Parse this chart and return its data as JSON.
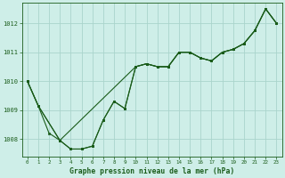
{
  "title": "Graphe pression niveau de la mer (hPa)",
  "background_color": "#ceeee8",
  "grid_color": "#aad4cc",
  "line_color": "#1a5c1a",
  "xlim": [
    -0.5,
    23.5
  ],
  "ylim": [
    1007.4,
    1012.7
  ],
  "yticks": [
    1008,
    1009,
    1010,
    1011,
    1012
  ],
  "xticks": [
    0,
    1,
    2,
    3,
    4,
    5,
    6,
    7,
    8,
    9,
    10,
    11,
    12,
    13,
    14,
    15,
    16,
    17,
    18,
    19,
    20,
    21,
    22,
    23
  ],
  "series1_x": [
    0,
    1,
    2,
    3,
    4,
    5,
    6,
    7,
    8,
    9,
    10,
    11,
    12,
    13,
    14,
    15,
    16,
    17,
    18,
    19,
    20,
    21,
    22,
    23
  ],
  "series1_y": [
    1010.0,
    1009.15,
    1008.2,
    1007.95,
    1007.65,
    1007.65,
    1007.75,
    1008.65,
    1009.3,
    1009.05,
    1010.5,
    1010.6,
    1010.5,
    1010.5,
    1011.0,
    1011.0,
    1010.8,
    1010.7,
    1011.0,
    1011.1,
    1011.3,
    1011.75,
    1012.5,
    1012.0
  ],
  "series2_x": [
    0,
    1,
    3,
    10,
    11,
    12,
    13,
    14,
    15,
    16,
    17,
    18,
    19,
    20,
    21,
    22,
    23
  ],
  "series2_y": [
    1010.0,
    1009.15,
    1007.95,
    1010.5,
    1010.6,
    1010.5,
    1010.5,
    1011.0,
    1011.0,
    1010.8,
    1010.7,
    1011.0,
    1011.1,
    1011.3,
    1011.75,
    1012.5,
    1012.0
  ],
  "series3_x": [
    0,
    1,
    3,
    4,
    5,
    6,
    7,
    8,
    9,
    10,
    11,
    12,
    13,
    14,
    15,
    16,
    17,
    18,
    19,
    20,
    21,
    22,
    23
  ],
  "series3_y": [
    1010.0,
    1009.15,
    1007.95,
    1007.65,
    1007.65,
    1007.75,
    1008.65,
    1009.3,
    1009.05,
    1010.5,
    1010.6,
    1010.5,
    1010.5,
    1011.0,
    1011.0,
    1010.8,
    1010.7,
    1011.0,
    1011.1,
    1011.3,
    1011.75,
    1012.5,
    1012.0
  ]
}
